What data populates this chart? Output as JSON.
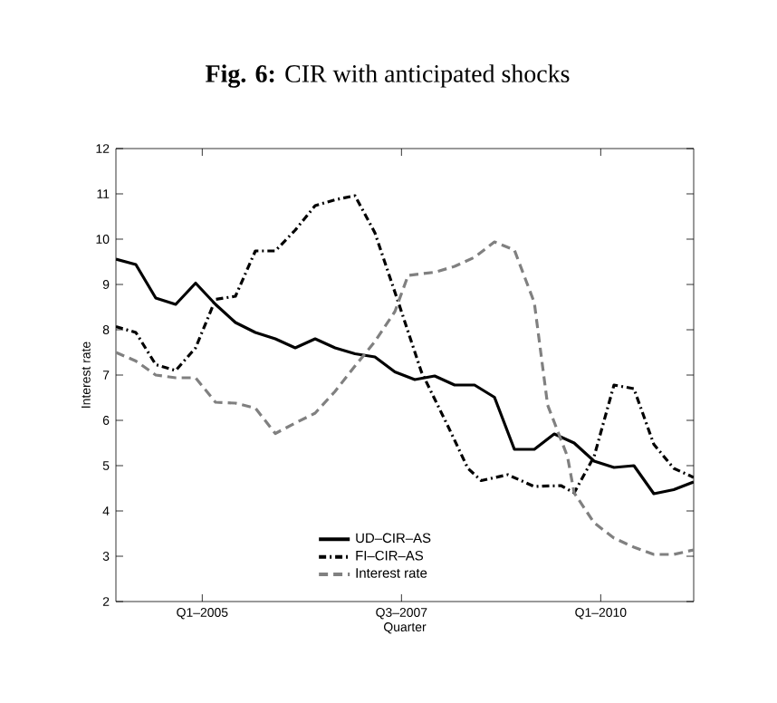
{
  "chart_data": {
    "type": "line",
    "title": "**Fig. 6:** CIR with anticipated shocks",
    "xlabel": "Quarter",
    "ylabel": "Interest rate",
    "xlim": [
      "2003-12",
      "2011-03"
    ],
    "xticks": [
      {
        "value": "2005-01",
        "label": "Q1–2005"
      },
      {
        "value": "2007-07",
        "label": "Q3–2007"
      },
      {
        "value": "2010-01",
        "label": "Q1–2010"
      }
    ],
    "ylim": [
      2,
      12
    ],
    "yticks": [
      2,
      3,
      4,
      5,
      6,
      7,
      8,
      9,
      10,
      11,
      12
    ],
    "legend": "bottom",
    "marker": "none",
    "series": [
      {
        "name": "UD–CIR–AS",
        "color": "#000000",
        "line_style": "solid",
        "x": [
          "2003-12",
          "2004-03",
          "2004-06",
          "2004-09",
          "2004-12",
          "2005-03",
          "2005-06",
          "2005-09",
          "2005-12",
          "2006-03",
          "2006-06",
          "2006-09",
          "2006-12",
          "2007-03",
          "2007-06",
          "2007-09",
          "2007-12",
          "2008-03",
          "2008-06",
          "2008-09",
          "2008-12",
          "2009-03",
          "2009-06",
          "2009-09",
          "2009-12",
          "2010-03",
          "2010-06",
          "2010-09",
          "2010-12",
          "2011-03"
        ],
        "values": [
          9.56,
          9.44,
          8.7,
          8.56,
          9.03,
          8.56,
          8.16,
          7.94,
          7.8,
          7.6,
          7.8,
          7.6,
          7.47,
          7.4,
          7.07,
          6.9,
          6.98,
          6.78,
          6.78,
          6.51,
          5.36,
          5.36,
          5.7,
          5.5,
          5.1,
          4.96,
          5.0,
          4.38,
          4.47,
          4.64
        ]
      },
      {
        "name": "FI–CIR–AS",
        "color": "#000000",
        "line_style": "dashdot",
        "x": [
          "2003-12",
          "2004-03",
          "2004-06",
          "2004-09",
          "2004-12",
          "2005-03",
          "2005-06",
          "2005-09",
          "2005-12",
          "2006-03",
          "2006-06",
          "2006-09",
          "2006-12",
          "2007-03",
          "2007-07",
          "2007-10",
          "2008-02",
          "2008-05",
          "2008-07",
          "2008-11",
          "2009-03",
          "2009-07",
          "2009-09",
          "2009-12",
          "2010-03",
          "2010-06",
          "2010-09",
          "2010-12",
          "2011-03"
        ],
        "values": [
          8.07,
          7.94,
          7.23,
          7.1,
          7.6,
          8.67,
          8.74,
          9.74,
          9.74,
          10.2,
          10.74,
          10.87,
          10.96,
          10.14,
          8.4,
          7.07,
          5.87,
          4.94,
          4.67,
          4.8,
          4.54,
          4.56,
          4.4,
          5.2,
          6.78,
          6.7,
          5.47,
          4.94,
          4.74
        ]
      },
      {
        "name": "Interest rate",
        "color": "#808080",
        "line_style": "dashed",
        "x": [
          "2003-12",
          "2004-03",
          "2004-06",
          "2004-09",
          "2004-12",
          "2005-03",
          "2005-06",
          "2005-09",
          "2005-12",
          "2006-03",
          "2006-06",
          "2006-09",
          "2006-12",
          "2007-03",
          "2007-06",
          "2007-08",
          "2007-12",
          "2008-03",
          "2008-06",
          "2008-09",
          "2008-12",
          "2009-03",
          "2009-05",
          "2009-08",
          "2009-09",
          "2009-12",
          "2010-03",
          "2010-06",
          "2010-09",
          "2010-12",
          "2011-03"
        ],
        "values": [
          7.5,
          7.31,
          7.0,
          6.94,
          6.94,
          6.4,
          6.38,
          6.27,
          5.71,
          5.94,
          6.16,
          6.64,
          7.2,
          7.74,
          8.4,
          9.2,
          9.27,
          9.4,
          9.6,
          9.94,
          9.76,
          8.6,
          6.34,
          5.2,
          4.4,
          3.74,
          3.4,
          3.2,
          3.04,
          3.04,
          3.14
        ]
      }
    ]
  }
}
